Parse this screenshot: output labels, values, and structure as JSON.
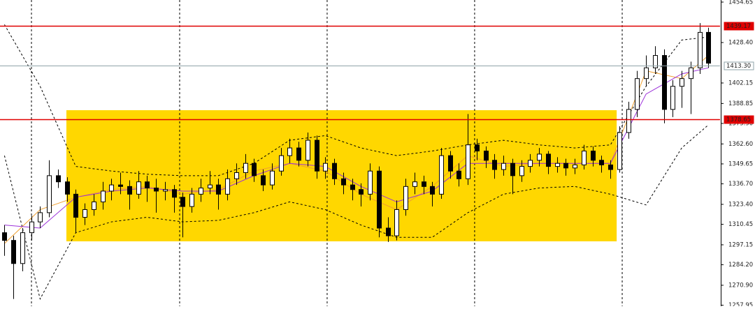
{
  "chart_data": {
    "type": "candlestick",
    "xlim": [
      -0.5,
      80.3
    ],
    "ylim": [
      1257.3,
      1456.0
    ],
    "yticks": [
      1454.65,
      {
        "value": 1428.4,
        "label": "1428.40"
      },
      1402.15,
      1388.85,
      {
        "value": 1375.9,
        "label": "1375.90"
      },
      {
        "value": 1362.6,
        "label": "1362.60"
      },
      1349.65,
      {
        "value": 1336.7,
        "label": "1336.70"
      },
      {
        "value": 1323.4,
        "label": "1323.40"
      },
      1310.45,
      1297.15,
      {
        "value": 1284.2,
        "label": "1284.20"
      },
      {
        "value": 1270.9,
        "label": "1270.90"
      },
      1257.95
    ],
    "vlines": [
      3.03,
      19.66,
      36.21,
      52.76,
      69.32
    ],
    "zones": [
      {
        "x": [
          6.95,
          68.7
        ],
        "y": [
          1299.4,
          1384.5
        ],
        "color": "#ffd700"
      }
    ],
    "hlines": [
      {
        "value": 1439.17,
        "color": "#e00000"
      },
      {
        "value": 1378.65,
        "color": "#e00000"
      },
      {
        "value": 1413.3,
        "label": "1413.30",
        "color": "#8fa3a8"
      }
    ],
    "up_color": "#ffffff",
    "down_color": "#000000",
    "candles": [
      [
        1305,
        1310,
        1290,
        1300
      ],
      [
        1300,
        1303,
        1262,
        1285
      ],
      [
        1285,
        1308,
        1280,
        1305
      ],
      [
        1305,
        1316,
        1300,
        1312
      ],
      [
        1312,
        1322,
        1308,
        1318
      ],
      [
        1318,
        1352,
        1315,
        1342
      ],
      [
        1342,
        1346,
        1334,
        1338
      ],
      [
        1338,
        1341,
        1325,
        1330
      ],
      [
        1330,
        1333,
        1305,
        1315
      ],
      [
        1315,
        1324,
        1310,
        1320
      ],
      [
        1320,
        1330,
        1316,
        1325
      ],
      [
        1325,
        1338,
        1320,
        1332
      ],
      [
        1332,
        1340,
        1326,
        1336
      ],
      [
        1336,
        1344,
        1330,
        1335
      ],
      [
        1335,
        1339,
        1320,
        1330
      ],
      [
        1330,
        1345,
        1327,
        1338
      ],
      [
        1338,
        1342,
        1325,
        1334
      ],
      [
        1334,
        1340,
        1318,
        1332
      ],
      [
        1332,
        1338,
        1326,
        1333
      ],
      [
        1333,
        1336,
        1318,
        1328
      ],
      [
        1328,
        1331,
        1302,
        1322
      ],
      [
        1322,
        1334,
        1318,
        1330
      ],
      [
        1330,
        1340,
        1325,
        1334
      ],
      [
        1334,
        1345,
        1330,
        1336
      ],
      [
        1336,
        1340,
        1320,
        1330
      ],
      [
        1330,
        1346,
        1326,
        1340
      ],
      [
        1340,
        1350,
        1336,
        1344
      ],
      [
        1344,
        1356,
        1340,
        1350
      ],
      [
        1350,
        1353,
        1338,
        1342
      ],
      [
        1342,
        1346,
        1332,
        1336
      ],
      [
        1336,
        1350,
        1333,
        1345
      ],
      [
        1345,
        1360,
        1342,
        1355
      ],
      [
        1355,
        1366,
        1350,
        1360
      ],
      [
        1360,
        1364,
        1348,
        1352
      ],
      [
        1352,
        1370,
        1348,
        1365
      ],
      [
        1365,
        1368,
        1340,
        1345
      ],
      [
        1345,
        1354,
        1340,
        1350
      ],
      [
        1350,
        1353,
        1336,
        1340
      ],
      [
        1340,
        1344,
        1330,
        1336
      ],
      [
        1336,
        1340,
        1326,
        1333
      ],
      [
        1333,
        1337,
        1322,
        1330
      ],
      [
        1330,
        1350,
        1326,
        1345
      ],
      [
        1345,
        1348,
        1302,
        1308
      ],
      [
        1308,
        1315,
        1299,
        1303
      ],
      [
        1303,
        1326,
        1300,
        1320
      ],
      [
        1320,
        1340,
        1316,
        1335
      ],
      [
        1335,
        1344,
        1330,
        1338
      ],
      [
        1338,
        1342,
        1330,
        1335
      ],
      [
        1335,
        1338,
        1322,
        1330
      ],
      [
        1330,
        1360,
        1327,
        1355
      ],
      [
        1355,
        1358,
        1340,
        1345
      ],
      [
        1345,
        1350,
        1335,
        1340
      ],
      [
        1340,
        1382,
        1336,
        1362
      ],
      [
        1362,
        1366,
        1352,
        1358
      ],
      [
        1358,
        1361,
        1347,
        1352
      ],
      [
        1352,
        1356,
        1340,
        1346
      ],
      [
        1346,
        1355,
        1342,
        1350
      ],
      [
        1350,
        1353,
        1330,
        1342
      ],
      [
        1342,
        1352,
        1338,
        1348
      ],
      [
        1348,
        1356,
        1344,
        1352
      ],
      [
        1352,
        1360,
        1348,
        1356
      ],
      [
        1356,
        1358,
        1343,
        1348
      ],
      [
        1348,
        1354,
        1344,
        1350
      ],
      [
        1350,
        1353,
        1342,
        1347
      ],
      [
        1347,
        1353,
        1343,
        1349
      ],
      [
        1349,
        1362,
        1346,
        1358
      ],
      [
        1358,
        1361,
        1348,
        1352
      ],
      [
        1352,
        1355,
        1344,
        1349
      ],
      [
        1349,
        1352,
        1340,
        1346
      ],
      [
        1346,
        1374,
        1344,
        1370
      ],
      [
        1370,
        1390,
        1366,
        1385
      ],
      [
        1385,
        1410,
        1380,
        1405
      ],
      [
        1405,
        1420,
        1400,
        1412
      ],
      [
        1412,
        1426,
        1408,
        1420
      ],
      [
        1420,
        1424,
        1376,
        1385
      ],
      [
        1385,
        1404,
        1380,
        1400
      ],
      [
        1400,
        1410,
        1386,
        1405
      ],
      [
        1405,
        1416,
        1382,
        1412
      ],
      [
        1412,
        1441,
        1408,
        1435
      ],
      [
        1435,
        1438,
        1412,
        1415
      ]
    ],
    "series": [
      {
        "color": "#000000",
        "dashed": true,
        "x": [
          0,
          4,
          8,
          12,
          16,
          20,
          24,
          28,
          32,
          36,
          40,
          44,
          48,
          52,
          56,
          60,
          64,
          68,
          72,
          76,
          79
        ],
        "values": [
          1440,
          1400,
          1348,
          1345,
          1343,
          1342,
          1342,
          1350,
          1365,
          1368,
          1360,
          1355,
          1358,
          1362,
          1365,
          1362,
          1360,
          1362,
          1400,
          1430,
          1432
        ]
      },
      {
        "color": "#000000",
        "dashed": true,
        "x": [
          0,
          4,
          8,
          12,
          16,
          20,
          24,
          28,
          32,
          36,
          40,
          44,
          48,
          52,
          56,
          60,
          64,
          68,
          72,
          76,
          79
        ],
        "values": [
          1355,
          1262,
          1305,
          1312,
          1315,
          1312,
          1313,
          1318,
          1325,
          1320,
          1310,
          1302,
          1302,
          1318,
          1330,
          1334,
          1335,
          1330,
          1323,
          1360,
          1375
        ]
      },
      {
        "color": "#f0a030",
        "dashed": false,
        "x": [
          0,
          4,
          8,
          12,
          16,
          20,
          24,
          28,
          32,
          36,
          40,
          44,
          48,
          52,
          56,
          60,
          64,
          68,
          72,
          76,
          79
        ],
        "values": [
          1298,
          1320,
          1328,
          1333,
          1335,
          1330,
          1333,
          1345,
          1350,
          1345,
          1330,
          1320,
          1335,
          1355,
          1348,
          1350,
          1350,
          1350,
          1410,
          1405,
          1420
        ]
      },
      {
        "color": "#9b30d9",
        "dashed": false,
        "x": [
          0,
          4,
          8,
          12,
          16,
          20,
          24,
          28,
          32,
          36,
          40,
          44,
          48,
          52,
          56,
          60,
          64,
          68,
          72,
          76,
          79
        ],
        "values": [
          1310,
          1308,
          1328,
          1332,
          1334,
          1332,
          1332,
          1342,
          1350,
          1348,
          1335,
          1325,
          1332,
          1350,
          1350,
          1350,
          1350,
          1350,
          1395,
          1408,
          1412
        ]
      }
    ]
  }
}
